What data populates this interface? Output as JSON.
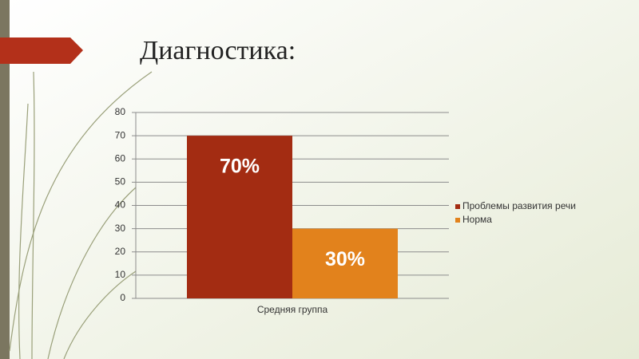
{
  "chart_data": {
    "type": "bar",
    "title": "Диагностика:",
    "categories": [
      "Средняя группа"
    ],
    "series": [
      {
        "name": "Проблемы развития речи",
        "color": "#a32c12",
        "values": [
          70
        ],
        "value_labels": [
          "70%"
        ]
      },
      {
        "name": "Норма",
        "color": "#e2821c",
        "values": [
          30
        ],
        "value_labels": [
          "30%"
        ]
      }
    ],
    "ylim": [
      0,
      80
    ],
    "yticks": [
      0,
      10,
      20,
      30,
      40,
      50,
      60,
      70,
      80
    ],
    "grid": true,
    "legend": "right"
  }
}
